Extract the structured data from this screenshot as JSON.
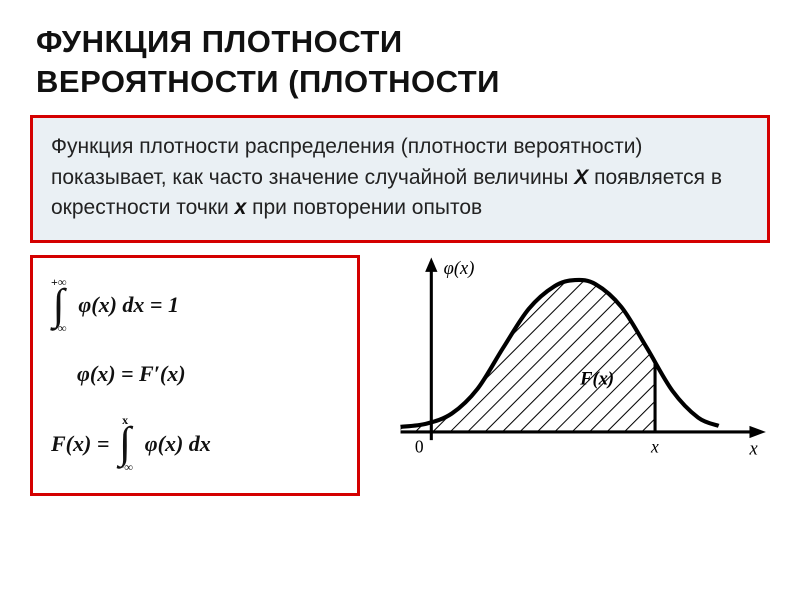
{
  "title": {
    "line1": "ФУНКЦИЯ ПЛОТНОСТИ",
    "line2": "ВЕРОЯТНОСТИ (ПЛОТНОСТИ",
    "color": "#111111",
    "fontsize": 31,
    "fontweight": 900
  },
  "definition": {
    "pre": "Функция плотности распределения (плотности вероятности) показывает, как часто значение случайной величины ",
    "var_big": "X",
    "mid": " появляется в окрестности точки ",
    "var_small": "x",
    "post": " при повторении опытов",
    "border_color": "#d40000",
    "background_color": "#eaf0f4",
    "text_color": "#222222",
    "fontsize": 21
  },
  "formulas": {
    "border_color": "#d40000",
    "background_color": "#ffffff",
    "text_color": "#111111",
    "fontsize": 22,
    "f1": {
      "upper": "+∞",
      "lower": "−∞",
      "body": "φ(x) dx = 1"
    },
    "f2": {
      "body": "φ(x) = F′(x)"
    },
    "f3": {
      "upper": "x",
      "lower": "−∞",
      "lhs": "F(x) =",
      "body": "φ(x) dx"
    }
  },
  "chart": {
    "type": "pdf-curve",
    "background_color": "#ffffff",
    "axis_color": "#000000",
    "axis_width": 3,
    "curve_color": "#000000",
    "curve_width": 4,
    "hatch_color": "#000000",
    "hatch_width": 2,
    "hatch_spacing": 12,
    "y_label": "φ(x)",
    "x_label": "x",
    "origin_label": "0",
    "fill_label": "F(x)",
    "label_fontsize": 18,
    "label_fontfamily": "Times New Roman, serif",
    "label_fontstyle": "italic",
    "xlim": [
      -40,
      330
    ],
    "ylim": [
      0,
      170
    ],
    "curve_points": [
      [
        20,
        165
      ],
      [
        45,
        162
      ],
      [
        70,
        152
      ],
      [
        95,
        128
      ],
      [
        120,
        88
      ],
      [
        145,
        50
      ],
      [
        170,
        28
      ],
      [
        190,
        22
      ],
      [
        210,
        26
      ],
      [
        235,
        48
      ],
      [
        260,
        88
      ],
      [
        285,
        130
      ],
      [
        310,
        156
      ],
      [
        330,
        164
      ]
    ],
    "shade_x_end": 268,
    "axis_origin": [
      50,
      170
    ],
    "x_tick_pos": 268
  }
}
